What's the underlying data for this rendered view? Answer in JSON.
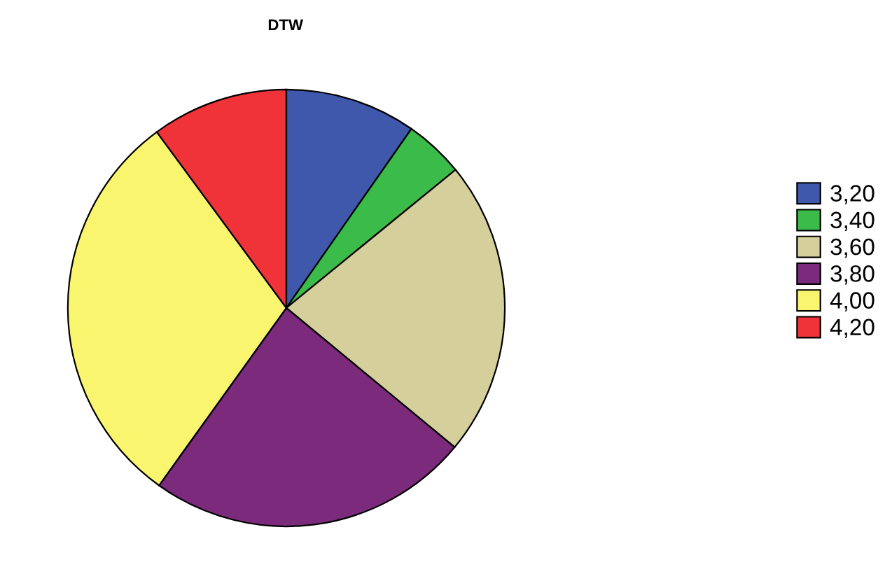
{
  "chart_data": {
    "type": "pie",
    "title": "DTW",
    "categories": [
      "3,20",
      "3,40",
      "3,60",
      "3,80",
      "4,00",
      "4,20"
    ],
    "values": [
      9.7,
      4.4,
      21.9,
      23.9,
      30.0,
      10.1
    ],
    "colors": [
      "#3f58ab",
      "#3bbb4a",
      "#d4cf9b",
      "#7b2a7c",
      "#f9f56f",
      "#f03338"
    ],
    "legend": "right"
  }
}
